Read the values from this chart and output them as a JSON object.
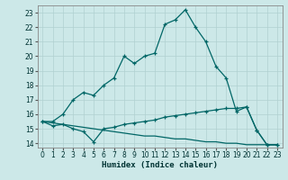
{
  "xlabel": "Humidex (Indice chaleur)",
  "bg_color": "#cce8e8",
  "grid_color": "#b0d0d0",
  "line_color": "#006666",
  "xlim": [
    -0.5,
    23.5
  ],
  "ylim": [
    13.7,
    23.5
  ],
  "xticks": [
    0,
    1,
    2,
    3,
    4,
    5,
    6,
    7,
    8,
    9,
    10,
    11,
    12,
    13,
    14,
    15,
    16,
    17,
    18,
    19,
    20,
    21,
    22,
    23
  ],
  "yticks": [
    14,
    15,
    16,
    17,
    18,
    19,
    20,
    21,
    22,
    23
  ],
  "line1_x": [
    0,
    1,
    2,
    3,
    4,
    5,
    6,
    7,
    8,
    9,
    10,
    11,
    12,
    13,
    14,
    15,
    16,
    17,
    18,
    19,
    20,
    21,
    22,
    23
  ],
  "line1_y": [
    15.5,
    15.5,
    16.0,
    17.0,
    17.5,
    17.3,
    18.0,
    18.5,
    20.0,
    19.5,
    20.0,
    20.2,
    22.2,
    22.5,
    23.2,
    22.0,
    21.0,
    19.3,
    18.5,
    16.2,
    16.5,
    14.9,
    13.9,
    13.9
  ],
  "line2_x": [
    0,
    1,
    2,
    3,
    4,
    5,
    6,
    7,
    8,
    9,
    10,
    11,
    12,
    13,
    14,
    15,
    16,
    17,
    18,
    19,
    20,
    21,
    22,
    23
  ],
  "line2_y": [
    15.5,
    15.2,
    15.3,
    15.0,
    14.8,
    14.1,
    15.0,
    15.1,
    15.3,
    15.4,
    15.5,
    15.6,
    15.8,
    15.9,
    16.0,
    16.1,
    16.2,
    16.3,
    16.4,
    16.4,
    16.5,
    14.9,
    13.9,
    13.9
  ],
  "line3_x": [
    0,
    1,
    2,
    3,
    4,
    5,
    6,
    7,
    8,
    9,
    10,
    11,
    12,
    13,
    14,
    15,
    16,
    17,
    18,
    19,
    20,
    21,
    22,
    23
  ],
  "line3_y": [
    15.5,
    15.4,
    15.3,
    15.2,
    15.1,
    15.0,
    14.9,
    14.8,
    14.7,
    14.6,
    14.5,
    14.5,
    14.4,
    14.3,
    14.3,
    14.2,
    14.1,
    14.1,
    14.0,
    14.0,
    13.9,
    13.9,
    13.9,
    13.9
  ],
  "tick_fontsize": 5.5,
  "xlabel_fontsize": 6.5
}
